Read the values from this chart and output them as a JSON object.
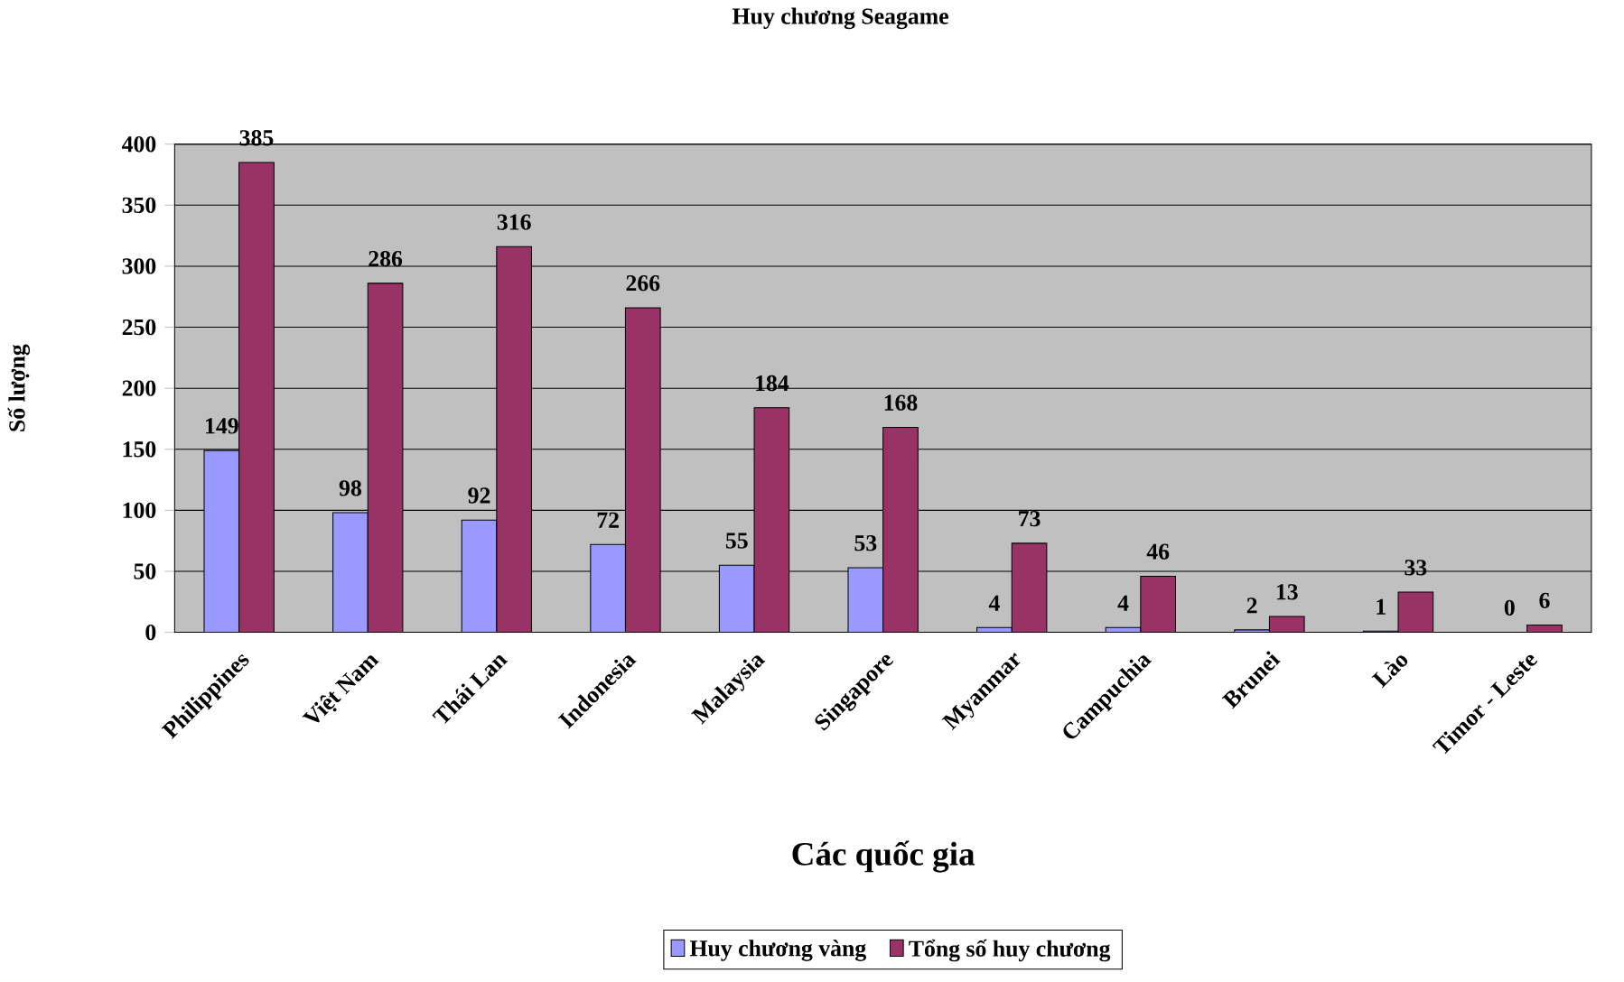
{
  "chart_data": {
    "type": "bar",
    "title": "Huy chương Seagame",
    "xlabel": "Các quốc gia",
    "ylabel": "Số lượng",
    "categories": [
      "Philippines",
      "Việt Nam",
      "Thái Lan",
      "Indonesia",
      "Malaysia",
      "Singapore",
      "Myanmar",
      "Campuchia",
      "Brunei",
      "Lào",
      "Timor - Leste"
    ],
    "series": [
      {
        "name": "Huy chương vàng",
        "color": "#9999ff",
        "values": [
          149,
          98,
          92,
          72,
          55,
          53,
          4,
          4,
          2,
          1,
          0
        ]
      },
      {
        "name": "Tổng số huy chương",
        "color": "#993366",
        "values": [
          385,
          286,
          316,
          266,
          184,
          168,
          73,
          46,
          13,
          33,
          6
        ]
      }
    ],
    "ylim": [
      0,
      400
    ],
    "yticks": [
      0,
      50,
      100,
      150,
      200,
      250,
      300,
      350,
      400
    ],
    "grid": "y",
    "legend": "bottom",
    "data_labels": true
  }
}
